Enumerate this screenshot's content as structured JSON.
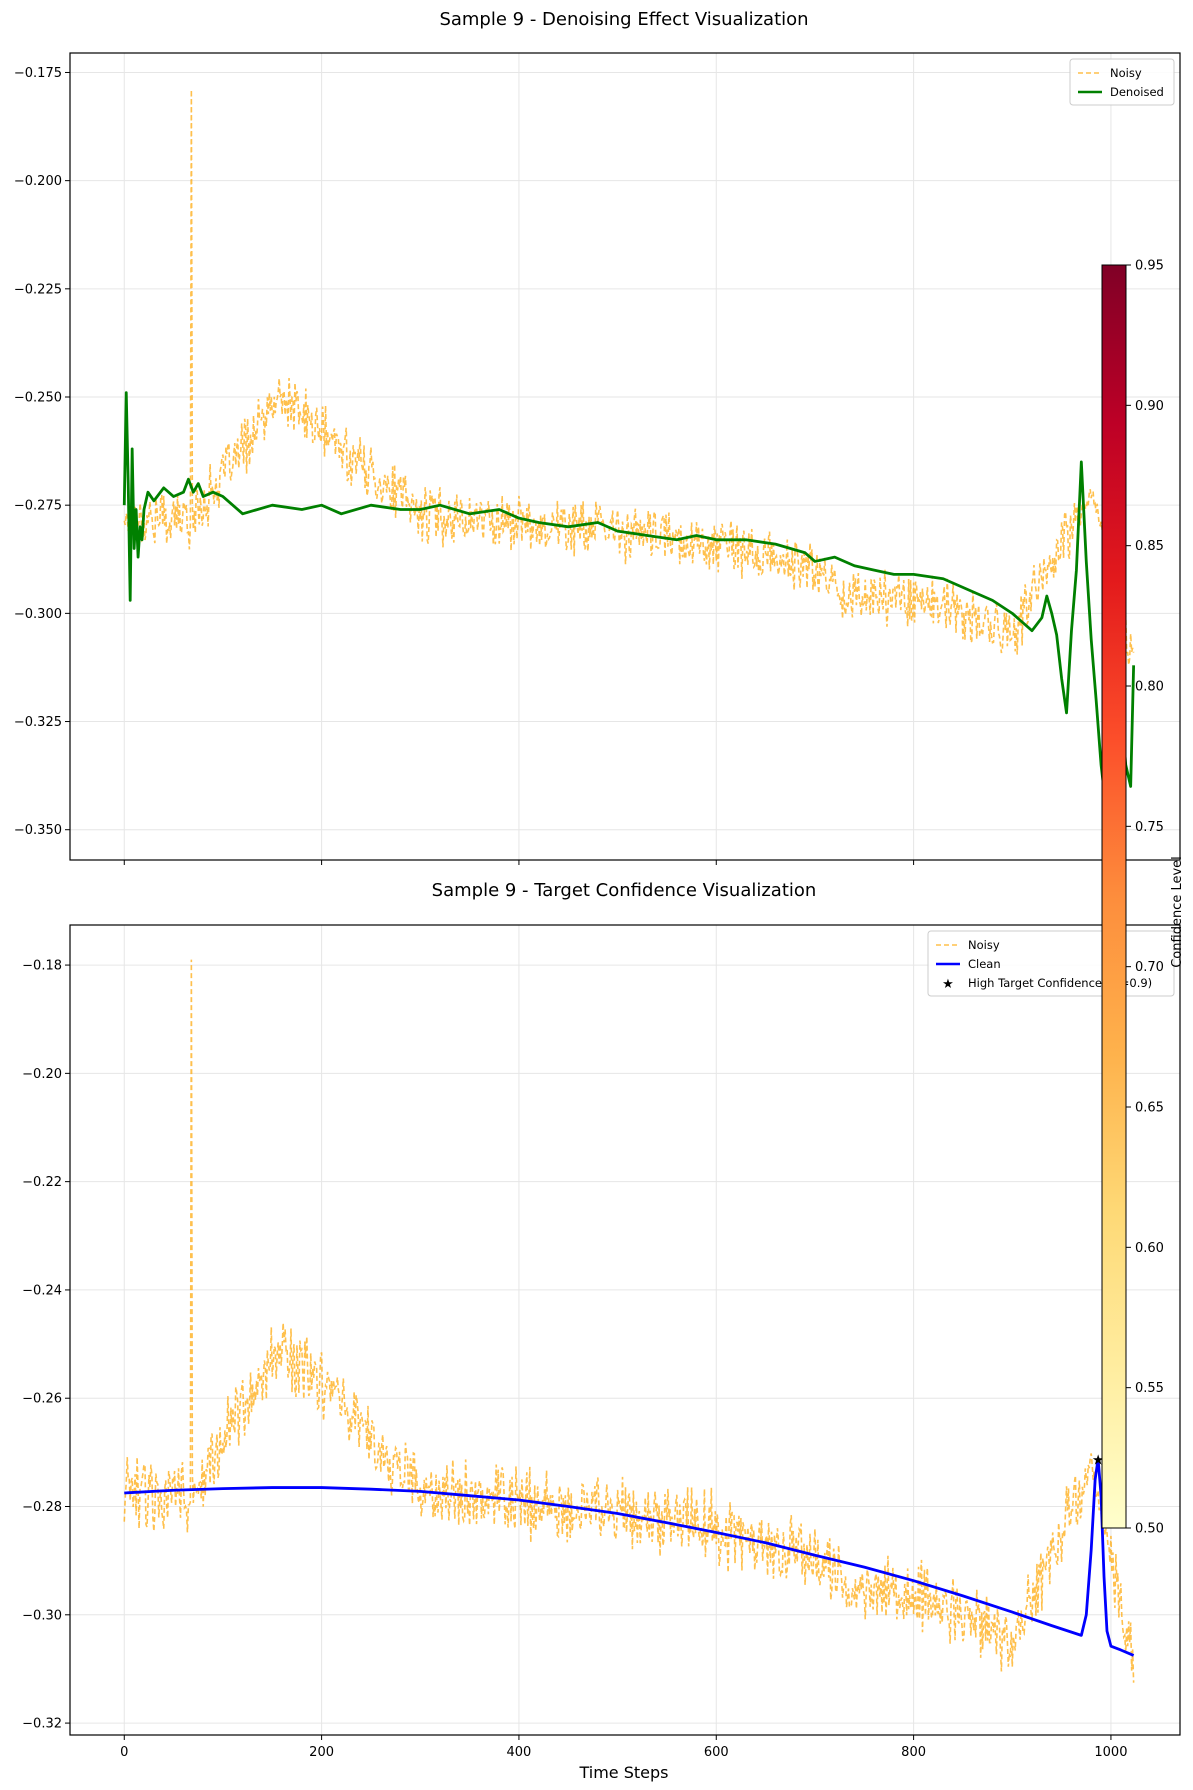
{
  "chart_data": [
    {
      "type": "line",
      "title": "Sample 9 - Denoising Effect Visualization",
      "xlabel": "",
      "ylabel": "",
      "xlim": [
        -55,
        1070
      ],
      "ylim": [
        -0.357,
        -0.1705
      ],
      "xticks": [
        0,
        200,
        400,
        600,
        800,
        1000
      ],
      "xtick_labels_visible": false,
      "yticks": [
        -0.35,
        -0.325,
        -0.3,
        -0.275,
        -0.25,
        -0.225,
        -0.2,
        -0.175
      ],
      "ytick_labels": [
        "−0.350",
        "−0.325",
        "−0.300",
        "−0.275",
        "−0.250",
        "−0.225",
        "−0.200",
        "−0.175"
      ],
      "grid": true,
      "legend_position": "top-right",
      "series": [
        {
          "name": "Noisy",
          "style": "dashed",
          "color": "#ffa500",
          "opacity": 0.7,
          "description": "noisy signal around the clean trend",
          "x": [
            0,
            67,
            68,
            69,
            158,
            300,
            400,
            500,
            600,
            700,
            735,
            800,
            900,
            980,
            1023
          ],
          "y": [
            -0.278,
            -0.278,
            -0.179,
            -0.278,
            -0.25,
            -0.277,
            -0.279,
            -0.281,
            -0.284,
            -0.29,
            -0.296,
            -0.296,
            -0.305,
            -0.272,
            -0.31
          ]
        },
        {
          "name": "Denoised",
          "style": "solid",
          "color": "#008000",
          "x": [
            0,
            2,
            4,
            6,
            8,
            10,
            12,
            14,
            16,
            18,
            20,
            24,
            30,
            40,
            50,
            60,
            65,
            70,
            75,
            80,
            90,
            100,
            120,
            150,
            180,
            200,
            220,
            250,
            280,
            300,
            320,
            350,
            380,
            400,
            420,
            450,
            480,
            500,
            530,
            560,
            580,
            600,
            630,
            660,
            690,
            700,
            720,
            740,
            760,
            780,
            800,
            830,
            860,
            880,
            900,
            910,
            920,
            930,
            935,
            940,
            945,
            950,
            955,
            960,
            965,
            970,
            975,
            980,
            985,
            990,
            995,
            1000,
            1005,
            1010,
            1015,
            1020,
            1023
          ],
          "y": [
            -0.275,
            -0.249,
            -0.27,
            -0.297,
            -0.262,
            -0.285,
            -0.276,
            -0.287,
            -0.28,
            -0.283,
            -0.276,
            -0.272,
            -0.274,
            -0.271,
            -0.273,
            -0.272,
            -0.269,
            -0.272,
            -0.27,
            -0.273,
            -0.272,
            -0.273,
            -0.277,
            -0.275,
            -0.276,
            -0.275,
            -0.277,
            -0.275,
            -0.276,
            -0.276,
            -0.275,
            -0.277,
            -0.276,
            -0.278,
            -0.279,
            -0.28,
            -0.279,
            -0.281,
            -0.282,
            -0.283,
            -0.282,
            -0.283,
            -0.283,
            -0.284,
            -0.286,
            -0.288,
            -0.287,
            -0.289,
            -0.29,
            -0.291,
            -0.291,
            -0.292,
            -0.295,
            -0.297,
            -0.3,
            -0.302,
            -0.304,
            -0.301,
            -0.296,
            -0.3,
            -0.305,
            -0.315,
            -0.323,
            -0.304,
            -0.29,
            -0.265,
            -0.288,
            -0.306,
            -0.32,
            -0.335,
            -0.345,
            -0.325,
            -0.315,
            -0.32,
            -0.335,
            -0.34,
            -0.312
          ]
        }
      ]
    },
    {
      "type": "line",
      "title": "Sample 9 - Target Confidence Visualization",
      "xlabel": "Time Steps",
      "ylabel": "",
      "xlim": [
        -55,
        1070
      ],
      "ylim": [
        -0.3222,
        -0.1726
      ],
      "xticks": [
        0,
        200,
        400,
        600,
        800,
        1000
      ],
      "xtick_labels": [
        "0",
        "200",
        "400",
        "600",
        "800",
        "1000"
      ],
      "yticks": [
        -0.32,
        -0.3,
        -0.28,
        -0.26,
        -0.24,
        -0.22,
        -0.2,
        -0.18
      ],
      "ytick_labels": [
        "−0.32",
        "−0.30",
        "−0.28",
        "−0.26",
        "−0.24",
        "−0.22",
        "−0.20",
        "−0.18"
      ],
      "grid": true,
      "legend_position": "top-right",
      "series": [
        {
          "name": "Noisy",
          "style": "dashed",
          "color": "#ffa500",
          "opacity": 0.7,
          "description": "noisy signal around the clean trend",
          "x": [
            0,
            67,
            68,
            69,
            158,
            300,
            400,
            500,
            600,
            700,
            735,
            800,
            900,
            980,
            1023
          ],
          "y": [
            -0.278,
            -0.278,
            -0.179,
            -0.278,
            -0.25,
            -0.277,
            -0.279,
            -0.281,
            -0.284,
            -0.29,
            -0.296,
            -0.296,
            -0.305,
            -0.272,
            -0.31
          ]
        },
        {
          "name": "Clean",
          "style": "solid",
          "color": "#0000ff",
          "x": [
            0,
            50,
            100,
            150,
            200,
            250,
            300,
            350,
            400,
            450,
            500,
            550,
            600,
            650,
            700,
            750,
            800,
            850,
            900,
            940,
            970,
            975,
            980,
            984,
            987,
            990,
            993,
            996,
            1000,
            1010,
            1023
          ],
          "y": [
            -0.2775,
            -0.277,
            -0.2767,
            -0.2765,
            -0.2765,
            -0.2768,
            -0.2772,
            -0.278,
            -0.2788,
            -0.28,
            -0.2813,
            -0.283,
            -0.2848,
            -0.2867,
            -0.289,
            -0.2912,
            -0.2937,
            -0.2965,
            -0.2995,
            -0.302,
            -0.3038,
            -0.3,
            -0.288,
            -0.275,
            -0.2712,
            -0.278,
            -0.293,
            -0.303,
            -0.3058,
            -0.3065,
            -0.3075
          ]
        },
        {
          "name": "High Target Confidence (>=0.9)",
          "style": "star-marker",
          "color": "#000000",
          "x": [
            987
          ],
          "y": [
            -0.2713
          ]
        }
      ]
    }
  ],
  "colorbar": {
    "label": "Confidence Level",
    "range": [
      0.5,
      0.95
    ],
    "ticks": [
      0.5,
      0.55,
      0.6,
      0.65,
      0.7,
      0.75,
      0.8,
      0.85,
      0.9,
      0.95
    ],
    "tick_labels": [
      "0.50",
      "0.55",
      "0.60",
      "0.65",
      "0.70",
      "0.75",
      "0.80",
      "0.85",
      "0.90",
      "0.95"
    ],
    "colormap": [
      "#ffffcc",
      "#ffeda0",
      "#fed976",
      "#feb24c",
      "#fd8d3c",
      "#fc4e2a",
      "#e31a1c",
      "#bd0026",
      "#800026"
    ]
  },
  "colors": {
    "noisy": "#ffa500",
    "denoised": "#008000",
    "clean": "#0000ff",
    "marker": "#000000"
  }
}
